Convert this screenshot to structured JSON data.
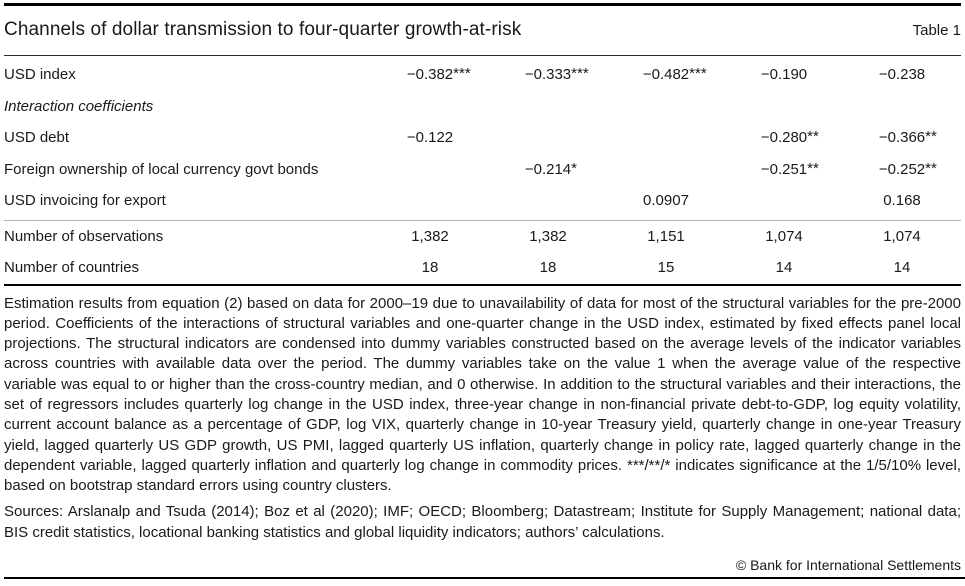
{
  "header": {
    "title": "Channels of dollar transmission to four-quarter growth-at-risk",
    "table_label": "Table 1"
  },
  "table": {
    "num_data_columns": 5,
    "rows": [
      {
        "type": "data",
        "label": "USD index",
        "values": [
          "−0.382***",
          "−0.333***",
          "−0.482***",
          "−0.190",
          "−0.238"
        ]
      },
      {
        "type": "section",
        "label": "Interaction coefficients"
      },
      {
        "type": "data",
        "label": "USD debt",
        "values": [
          "−0.122",
          "",
          "",
          "−0.280**",
          "−0.366**"
        ]
      },
      {
        "type": "data",
        "label": "Foreign ownership of local currency govt bonds",
        "values": [
          "",
          "−0.214*",
          "",
          "−0.251**",
          "−0.252**"
        ]
      },
      {
        "type": "data",
        "label": "USD invoicing for export",
        "values": [
          "",
          "",
          "0.0907",
          "",
          "0.168"
        ]
      },
      {
        "type": "data",
        "label": "Number of observations",
        "divider_above": true,
        "values": [
          "1,382",
          "1,382",
          "1,151",
          "1,074",
          "1,074"
        ]
      },
      {
        "type": "data",
        "label": "Number of countries",
        "values": [
          "18",
          "18",
          "15",
          "14",
          "14"
        ]
      }
    ]
  },
  "notes": {
    "body": "Estimation results from equation (2) based on data for 2000–19 due to unavailability of data for most of the structural variables for the pre-2000 period. Coefficients of the interactions of structural variables and one-quarter change in the USD index, estimated by fixed effects panel local projections. The structural indicators are condensed into dummy variables constructed based on the average levels of the indicator variables across countries with available data over the period. The dummy variables take on the value 1 when the average value of the respective variable was equal to or higher than the cross-country median, and 0 otherwise. In addition to the structural variables and their interactions, the set of regressors includes quarterly log change in the USD index, three-year change in non-financial private debt-to-GDP, log equity volatility, current account balance as a percentage of GDP, log VIX, quarterly change in 10-year Treasury yield, quarterly change in one-year Treasury yield, lagged quarterly US GDP growth, US PMI, lagged quarterly US inflation, quarterly change in policy rate, lagged quarterly change in the dependent variable, lagged quarterly inflation and quarterly log change in commodity prices. ***/**/* indicates significance at the 1/5/10% level, based on bootstrap standard errors using country clusters."
  },
  "sources": {
    "text": "Sources: Arslanalp and Tsuda (2014); Boz et al (2020); IMF; OECD; Bloomberg; Datastream; Institute for Supply Management; national data; BIS credit statistics, locational banking statistics and global liquidity indicators; authors’ calculations."
  },
  "footer": {
    "copyright": "© Bank for International Settlements"
  },
  "colors": {
    "text": "#1a1a1a",
    "rule_heavy": "#000000",
    "rule_dark": "#2b2b2b",
    "rule_light": "#b5b5b5"
  }
}
